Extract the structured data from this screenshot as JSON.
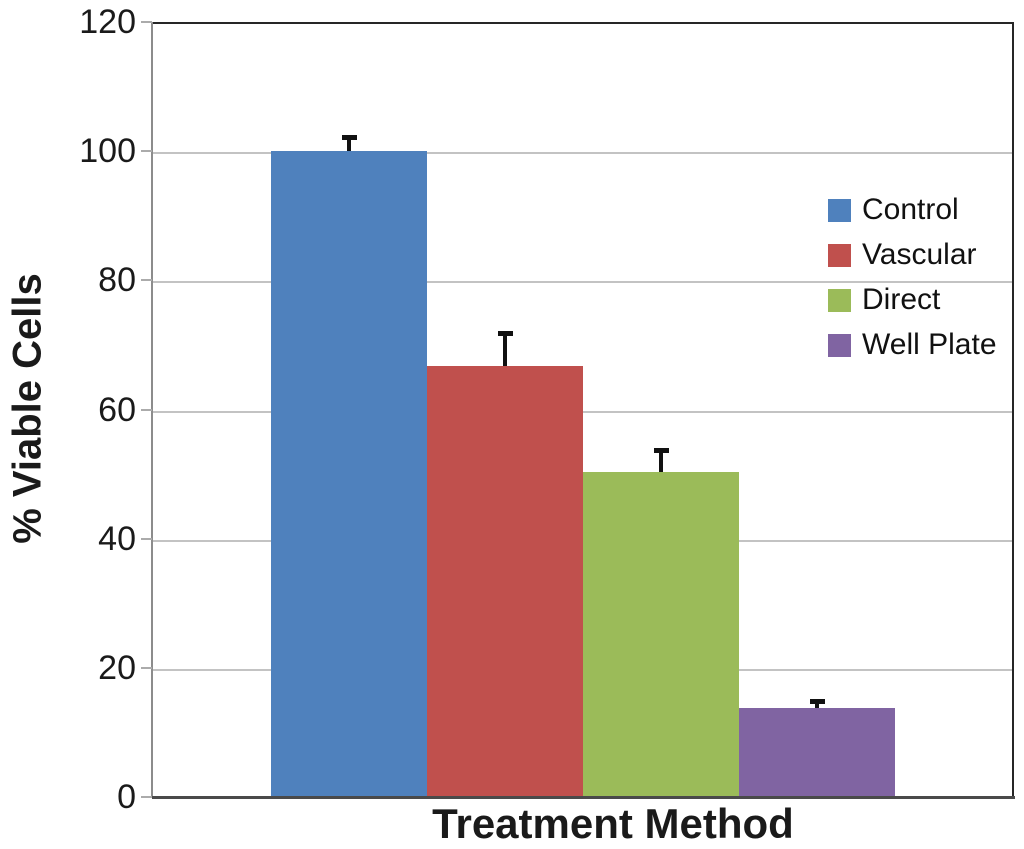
{
  "chart_data": {
    "type": "bar",
    "title": "",
    "xlabel": "Treatment Method",
    "ylabel": "% Viable Cells",
    "categories": [
      "Control",
      "Vascular",
      "Direct",
      "Well Plate"
    ],
    "values": [
      100,
      66.7,
      50.3,
      13.8
    ],
    "error_bars_plus": [
      2.2,
      5.1,
      3.5,
      1.1
    ],
    "series_colors": [
      "#4F81BD",
      "#C0504D",
      "#9BBB59",
      "#8064A2"
    ],
    "ylim": [
      0,
      120
    ],
    "yticks": [
      0,
      20,
      40,
      60,
      80,
      100,
      120
    ],
    "grid": true,
    "gridline_color": "#C3C3C3",
    "error_bar_color": "#111111",
    "legend": {
      "position": "right-inside",
      "entries": [
        {
          "label": "Control",
          "color": "#4F81BD"
        },
        {
          "label": "Vascular",
          "color": "#C0504D"
        },
        {
          "label": "Direct",
          "color": "#9BBB59"
        },
        {
          "label": "Well Plate",
          "color": "#8064A2"
        }
      ]
    }
  }
}
